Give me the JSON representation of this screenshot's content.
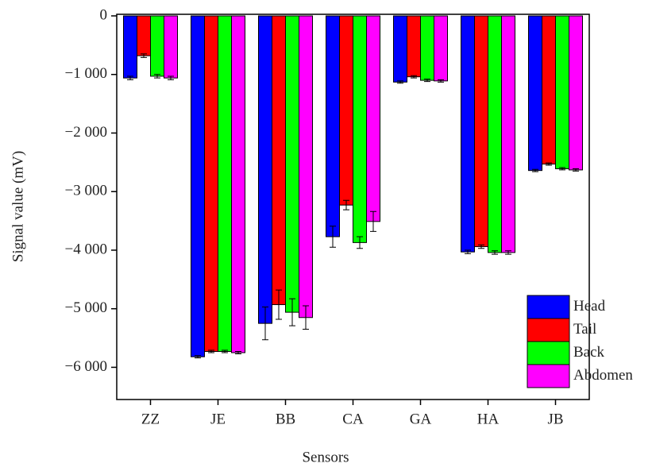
{
  "chart_data": {
    "type": "bar",
    "xlabel": "Sensors",
    "ylabel": "Signal value (mV)",
    "categories": [
      "ZZ",
      "JE",
      "BB",
      "CA",
      "GA",
      "HA",
      "JB"
    ],
    "series": [
      {
        "name": "Head",
        "color": "#0000ff",
        "values": [
          -1060,
          -5820,
          -5250,
          -3770,
          -1130,
          -4030,
          -2640
        ],
        "errors": [
          30,
          20,
          280,
          180,
          20,
          30,
          20
        ]
      },
      {
        "name": "Tail",
        "color": "#ff0000",
        "values": [
          -680,
          -5730,
          -4930,
          -3230,
          -1040,
          -3940,
          -2530
        ],
        "errors": [
          30,
          20,
          250,
          80,
          20,
          30,
          20
        ]
      },
      {
        "name": "Back",
        "color": "#00ff00",
        "values": [
          -1030,
          -5730,
          -5060,
          -3870,
          -1100,
          -4040,
          -2610
        ],
        "errors": [
          30,
          20,
          230,
          100,
          20,
          30,
          20
        ]
      },
      {
        "name": "Abdomen",
        "color": "#ff00ff",
        "values": [
          -1060,
          -5750,
          -5150,
          -3510,
          -1110,
          -4040,
          -2630
        ],
        "errors": [
          30,
          20,
          200,
          170,
          20,
          30,
          20
        ]
      }
    ],
    "ylim": [
      -6550,
      0
    ],
    "yticks": [
      {
        "value": -6000,
        "label": "−6 000"
      },
      {
        "value": -5000,
        "label": "−5 000"
      },
      {
        "value": -4000,
        "label": "−4 000"
      },
      {
        "value": -3000,
        "label": "−3 000"
      },
      {
        "value": -2000,
        "label": "−2 000"
      },
      {
        "value": -1000,
        "label": "−1 000"
      },
      0
    ],
    "legend": "lower right"
  }
}
